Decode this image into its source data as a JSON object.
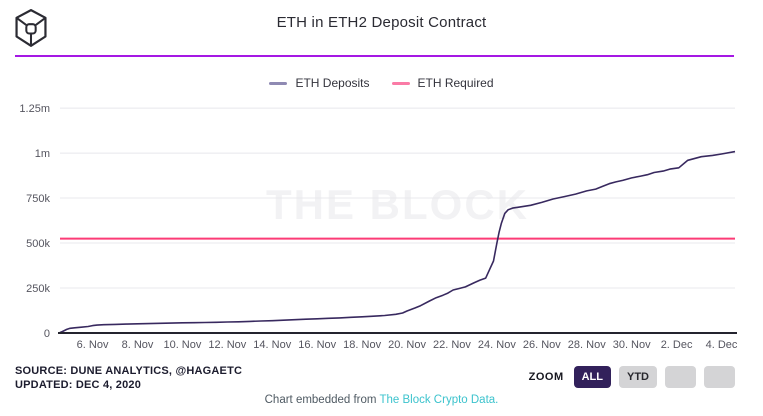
{
  "header": {
    "title": "ETH in ETH2 Deposit Contract"
  },
  "legend": [
    {
      "label": "ETH Deposits",
      "color": "#8f8ab3"
    },
    {
      "label": "ETH Required",
      "color": "#fa7ba6"
    }
  ],
  "watermark": "THE BLOCK",
  "footer": {
    "source_line1": "SOURCE: DUNE ANALYTICS, @HAGAETC",
    "source_line2": "UPDATED: DEC 4, 2020",
    "zoom_label": "ZOOM",
    "zoom_buttons": [
      {
        "label": "ALL",
        "active": true
      },
      {
        "label": "YTD",
        "active": false
      },
      {
        "label": "",
        "active": false
      },
      {
        "label": "",
        "active": false
      }
    ],
    "caption_prefix": "Chart embedded from ",
    "caption_link": "The Block Crypto Data."
  },
  "colors": {
    "top_divider": "#a518e4",
    "deposits_line": "#38295f",
    "required_line": "#fc3b76",
    "gridline": "#e8e8ec",
    "axis_line": "#24242f",
    "tick_text": "#55555f",
    "link_teal": "#3cc3cd",
    "active_button_bg": "#32215b",
    "inactive_button_bg": "#d4d4d6"
  },
  "chart_data": {
    "type": "line",
    "title": "ETH in ETH2 Deposit Contract",
    "x_unit": "day index (Nov 4 = 4, Dec 2 = 32)",
    "x_range": [
      4.55,
      34.6
    ],
    "y_range": [
      0,
      1295000
    ],
    "grid": true,
    "legend_position": "top",
    "y_ticks": [
      {
        "value": 0,
        "label": "0"
      },
      {
        "value": 250000,
        "label": "250k"
      },
      {
        "value": 500000,
        "label": "500k"
      },
      {
        "value": 750000,
        "label": "750k"
      },
      {
        "value": 1000000,
        "label": "1m"
      },
      {
        "value": 1250000,
        "label": "1.25m"
      }
    ],
    "x_ticks": [
      {
        "day": 6,
        "label": "6. Nov"
      },
      {
        "day": 8,
        "label": "8. Nov"
      },
      {
        "day": 10,
        "label": "10. Nov"
      },
      {
        "day": 12,
        "label": "12. Nov"
      },
      {
        "day": 14,
        "label": "14. Nov"
      },
      {
        "day": 16,
        "label": "16. Nov"
      },
      {
        "day": 18,
        "label": "18. Nov"
      },
      {
        "day": 20,
        "label": "20. Nov"
      },
      {
        "day": 22,
        "label": "22. Nov"
      },
      {
        "day": 24,
        "label": "24. Nov"
      },
      {
        "day": 26,
        "label": "26. Nov"
      },
      {
        "day": 28,
        "label": "28. Nov"
      },
      {
        "day": 30,
        "label": "30. Nov"
      },
      {
        "day": 32,
        "label": "2. Dec"
      },
      {
        "day": 34,
        "label": "4. Dec"
      }
    ],
    "series": [
      {
        "name": "ETH Deposits",
        "color": "#38295f",
        "points": [
          [
            4.55,
            3000
          ],
          [
            4.65,
            8000
          ],
          [
            4.75,
            14000
          ],
          [
            4.85,
            20000
          ],
          [
            5.0,
            26000
          ],
          [
            5.2,
            29000
          ],
          [
            5.5,
            32000
          ],
          [
            5.8,
            36000
          ],
          [
            6.0,
            41000
          ],
          [
            6.2,
            44000
          ],
          [
            6.5,
            46000
          ],
          [
            7.0,
            48000
          ],
          [
            7.5,
            49500
          ],
          [
            8.0,
            51000
          ],
          [
            8.5,
            52500
          ],
          [
            9.0,
            54000
          ],
          [
            9.5,
            55000
          ],
          [
            10.0,
            56500
          ],
          [
            10.5,
            57500
          ],
          [
            11.0,
            58500
          ],
          [
            11.5,
            59500
          ],
          [
            12.0,
            61000
          ],
          [
            12.5,
            62500
          ],
          [
            13.0,
            64500
          ],
          [
            13.5,
            66500
          ],
          [
            14.0,
            68500
          ],
          [
            14.5,
            71000
          ],
          [
            15.0,
            74000
          ],
          [
            15.5,
            76500
          ],
          [
            16.0,
            79000
          ],
          [
            16.5,
            81500
          ],
          [
            17.0,
            84000
          ],
          [
            17.5,
            87000
          ],
          [
            18.0,
            90000
          ],
          [
            18.5,
            93500
          ],
          [
            19.0,
            97000
          ],
          [
            19.5,
            104000
          ],
          [
            19.8,
            111000
          ],
          [
            20.0,
            122000
          ],
          [
            20.35,
            139000
          ],
          [
            20.6,
            152000
          ],
          [
            21.0,
            178000
          ],
          [
            21.3,
            196000
          ],
          [
            21.6,
            210000
          ],
          [
            21.82,
            222000
          ],
          [
            22.05,
            239000
          ],
          [
            22.3,
            247000
          ],
          [
            22.6,
            256000
          ],
          [
            23.0,
            280000
          ],
          [
            23.25,
            294000
          ],
          [
            23.5,
            305000
          ],
          [
            23.7,
            360000
          ],
          [
            23.85,
            400000
          ],
          [
            24.0,
            500000
          ],
          [
            24.1,
            560000
          ],
          [
            24.2,
            610000
          ],
          [
            24.35,
            665000
          ],
          [
            24.5,
            685000
          ],
          [
            24.7,
            694000
          ],
          [
            25.0,
            700000
          ],
          [
            25.5,
            710000
          ],
          [
            26.0,
            726000
          ],
          [
            26.5,
            745000
          ],
          [
            27.0,
            758000
          ],
          [
            27.5,
            772000
          ],
          [
            28.0,
            790000
          ],
          [
            28.4,
            800000
          ],
          [
            28.7,
            815000
          ],
          [
            29.0,
            830000
          ],
          [
            29.3,
            840000
          ],
          [
            29.6,
            848000
          ],
          [
            30.0,
            862000
          ],
          [
            30.4,
            872000
          ],
          [
            30.7,
            880000
          ],
          [
            31.0,
            892000
          ],
          [
            31.4,
            900000
          ],
          [
            31.7,
            911000
          ],
          [
            32.1,
            918000
          ],
          [
            32.35,
            945000
          ],
          [
            32.5,
            960000
          ],
          [
            33.1,
            980000
          ],
          [
            33.6,
            987000
          ],
          [
            34.0,
            995000
          ],
          [
            34.6,
            1008000
          ]
        ]
      },
      {
        "name": "ETH Required",
        "color": "#fc3b76",
        "constant": 524288
      }
    ]
  }
}
